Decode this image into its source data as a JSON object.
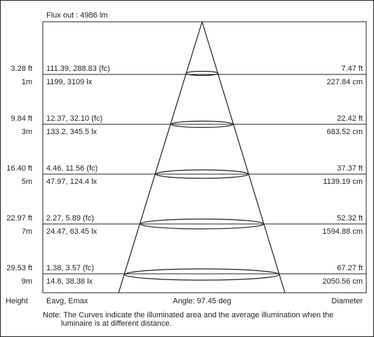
{
  "flux": "Flux out : 4986 lm",
  "rows": [
    {
      "height_ft": "3.28 ft",
      "height_m": "1m",
      "fc": "111.39, 288.83 (fc)",
      "lx": "1199, 3109 lx",
      "diam_ft": "7.47 ft",
      "diam_cm": "227.84 cm"
    },
    {
      "height_ft": "9.84 ft",
      "height_m": "3m",
      "fc": "12.37, 32.10 (fc)",
      "lx": "133.2, 345.5 lx",
      "diam_ft": "22.42 ft",
      "diam_cm": "683.52 cm"
    },
    {
      "height_ft": "16.40 ft",
      "height_m": "5m",
      "fc": "4.46, 11.56 (fc)",
      "lx": "47.97, 124.4 lx",
      "diam_ft": "37.37 ft",
      "diam_cm": "1139.19 cm"
    },
    {
      "height_ft": "22.97 ft",
      "height_m": "7m",
      "fc": "2.27, 5.89 (fc)",
      "lx": "24.47, 63.45 lx",
      "diam_ft": "52.32 ft",
      "diam_cm": "1594.88 cm"
    },
    {
      "height_ft": "29.53 ft",
      "height_m": "9m",
      "fc": "1.38, 3.57 (fc)",
      "lx": "14.8, 38.38 lx",
      "diam_ft": "67.27 ft",
      "diam_cm": "2050.56 cm"
    }
  ],
  "footer": {
    "height": "Height",
    "eavg": "Eavg, Emax",
    "angle": "Angle: 97.45 deg",
    "diameter": "Diameter"
  },
  "note": {
    "line1": "Note: The Curves indicate the illuminated area and the average illumination when the",
    "line2": "luminaire is at different distance."
  }
}
